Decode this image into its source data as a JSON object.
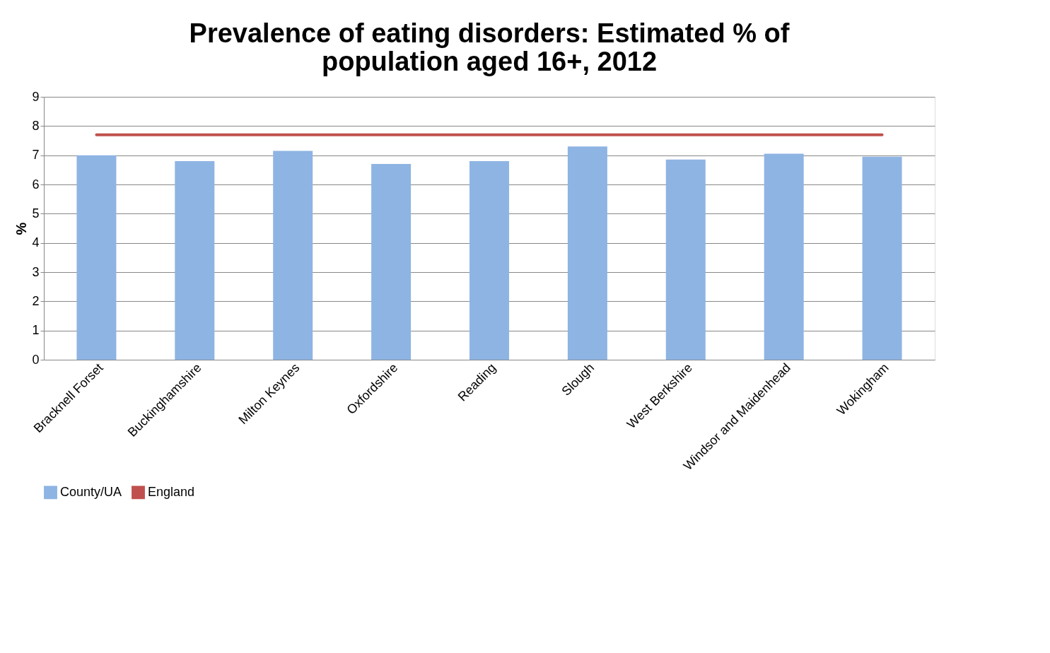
{
  "chart_data": {
    "type": "bar",
    "title": [
      "Prevalence of eating disorders: Estimated % of",
      "population aged 16+, 2012"
    ],
    "ylabel": "%",
    "categories": [
      "Bracknell Forset",
      "Buckinghamshire",
      "Milton Keynes",
      "Oxfordshire",
      "Reading",
      "Slough",
      "West Berkshire",
      "Windsor and Maidenhead",
      "Wokingham"
    ],
    "series": [
      {
        "name": "County/UA",
        "color": "#8eb4e3",
        "values": [
          7.0,
          6.8,
          7.15,
          6.7,
          6.8,
          7.3,
          6.85,
          7.05,
          6.95
        ]
      },
      {
        "name": "England",
        "type": "line",
        "color": "#c0504d",
        "values": [
          7.7,
          7.7,
          7.7,
          7.7,
          7.7,
          7.7,
          7.7,
          7.7,
          7.7
        ]
      }
    ],
    "ylim": [
      0,
      9
    ],
    "yticks": [
      0,
      1,
      2,
      3,
      4,
      5,
      6,
      7,
      8,
      9
    ],
    "grid": "y",
    "legend": "bottom"
  }
}
